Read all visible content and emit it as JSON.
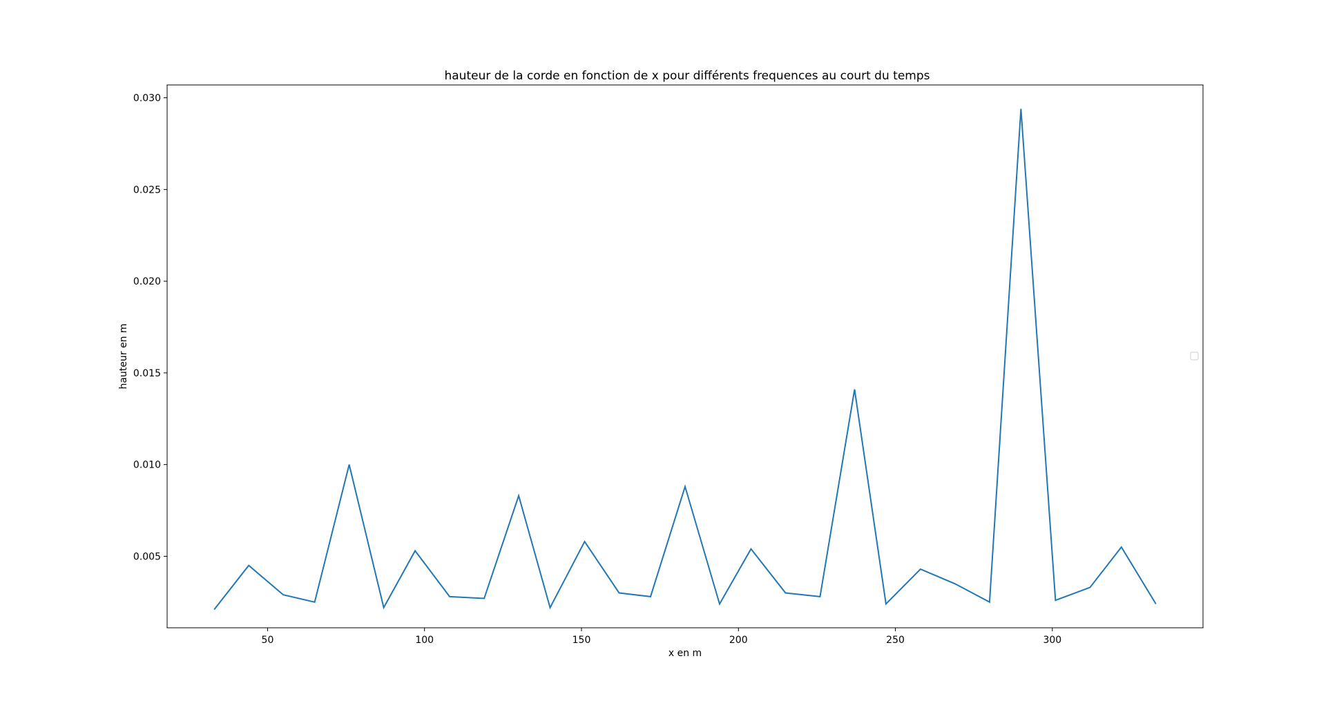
{
  "chart_data": {
    "type": "line",
    "title": "hauteur de la corde en fonction de x pour différents frequences au court du temps",
    "xlabel": "x en m",
    "ylabel": "hauteur en m",
    "xlim": [
      18,
      348
    ],
    "ylim": [
      0.0011,
      0.0307
    ],
    "xticks": [
      50,
      100,
      150,
      200,
      250,
      300
    ],
    "xtick_labels": [
      "50",
      "100",
      "150",
      "200",
      "250",
      "300"
    ],
    "yticks": [
      0.005,
      0.01,
      0.015,
      0.02,
      0.025,
      0.03
    ],
    "ytick_labels": [
      "0.005",
      "0.010",
      "0.015",
      "0.020",
      "0.025",
      "0.030"
    ],
    "grid": false,
    "legend": "center-right (empty)",
    "series": [
      {
        "color": "#1f77b4",
        "x": [
          33,
          44,
          55,
          65,
          76,
          87,
          97,
          108,
          119,
          130,
          140,
          151,
          162,
          172,
          183,
          194,
          204,
          215,
          226,
          237,
          247,
          258,
          269,
          280,
          290,
          301,
          312,
          322,
          333
        ],
        "y": [
          0.0021,
          0.0045,
          0.0029,
          0.0025,
          0.01,
          0.0022,
          0.0053,
          0.0028,
          0.0027,
          0.0083,
          0.0022,
          0.0058,
          0.003,
          0.0028,
          0.0088,
          0.0024,
          0.0054,
          0.003,
          0.0028,
          0.0141,
          0.0024,
          0.0043,
          0.0035,
          0.0025,
          0.0294,
          0.0026,
          0.0033,
          0.0055,
          0.0024
        ]
      }
    ]
  }
}
